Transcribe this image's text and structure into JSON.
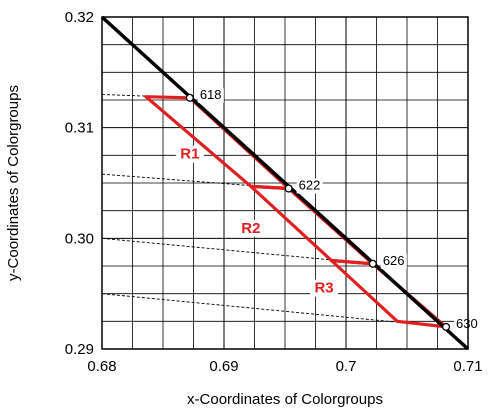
{
  "chart_data": {
    "type": "line",
    "xlabel": "x-Coordinates of Colorgroups",
    "ylabel": "y-Coordinates of Colorgroups",
    "xlim": [
      0.68,
      0.71
    ],
    "ylim": [
      0.29,
      0.32
    ],
    "x_ticks": [
      {
        "value": 0.68,
        "label": "0.68"
      },
      {
        "value": 0.69,
        "label": "0.69"
      },
      {
        "value": 0.7,
        "label": "0.7"
      },
      {
        "value": 0.71,
        "label": "0.71"
      }
    ],
    "y_ticks": [
      {
        "value": 0.29,
        "label": "0.29"
      },
      {
        "value": 0.3,
        "label": "0.30"
      },
      {
        "value": 0.31,
        "label": "0.31"
      },
      {
        "value": 0.32,
        "label": "0.32"
      }
    ],
    "grid": true,
    "spectral_locus": {
      "color": "#000000",
      "points": [
        [
          0.68,
          0.32
        ],
        [
          0.71,
          0.29
        ]
      ]
    },
    "wavelength_points": [
      {
        "label": "618",
        "x": 0.6872,
        "y": 0.3127
      },
      {
        "label": "622",
        "x": 0.6953,
        "y": 0.3045
      },
      {
        "label": "626",
        "x": 0.7022,
        "y": 0.2977
      },
      {
        "label": "630",
        "x": 0.7082,
        "y": 0.292
      }
    ],
    "dashed_lines": [
      {
        "from": [
          0.68,
          0.313
        ],
        "to": [
          0.6872,
          0.3127
        ]
      },
      {
        "from": [
          0.68,
          0.3058
        ],
        "to": [
          0.6953,
          0.3045
        ]
      },
      {
        "from": [
          0.68,
          0.3
        ],
        "to": [
          0.7022,
          0.2977
        ]
      },
      {
        "from": [
          0.68,
          0.295
        ],
        "to": [
          0.7082,
          0.292
        ]
      }
    ],
    "regions": [
      {
        "name": "R1",
        "color": "#e02020",
        "polygon": [
          [
            0.6836,
            0.3128
          ],
          [
            0.6872,
            0.3127
          ],
          [
            0.6953,
            0.3045
          ],
          [
            0.6922,
            0.3047
          ]
        ]
      },
      {
        "name": "R2",
        "color": "#e02020",
        "polygon": [
          [
            0.6922,
            0.3047
          ],
          [
            0.6953,
            0.3045
          ],
          [
            0.7022,
            0.2977
          ],
          [
            0.6988,
            0.298
          ]
        ]
      },
      {
        "name": "R3",
        "color": "#e02020",
        "polygon": [
          [
            0.6988,
            0.298
          ],
          [
            0.7022,
            0.2977
          ],
          [
            0.7082,
            0.292
          ],
          [
            0.7042,
            0.2925
          ]
        ]
      }
    ],
    "region_labels": [
      {
        "text": "R1",
        "x": 0.6872,
        "y": 0.3072
      },
      {
        "text": "R2",
        "x": 0.6922,
        "y": 0.3005
      },
      {
        "text": "R3",
        "x": 0.6982,
        "y": 0.2951
      }
    ]
  }
}
